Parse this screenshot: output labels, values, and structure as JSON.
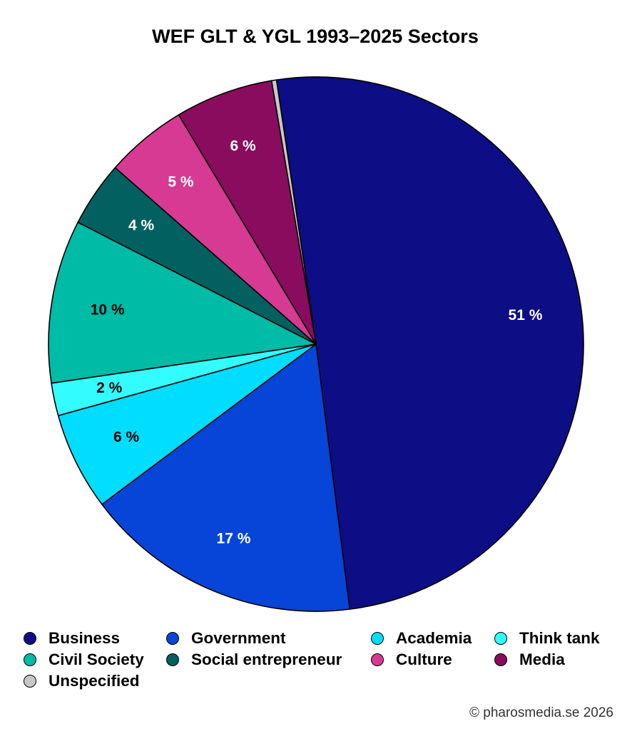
{
  "chart_data": {
    "type": "pie",
    "title": "WEF GLT & YGL 1993–2025 Sectors",
    "slices": [
      {
        "name": "Business",
        "value": 51,
        "label": "51 %",
        "color": "#0d0d85",
        "label_color": "#ffffff"
      },
      {
        "name": "Government",
        "value": 17,
        "label": "17 %",
        "color": "#0645d8",
        "label_color": "#ffffff"
      },
      {
        "name": "Academia",
        "value": 6,
        "label": "6 %",
        "color": "#00ddff",
        "label_color": "#000000"
      },
      {
        "name": "Think tank",
        "value": 2,
        "label": "2 %",
        "color": "#33fcff",
        "label_color": "#000000"
      },
      {
        "name": "Civil Society",
        "value": 10,
        "label": "10 %",
        "color": "#00bba6",
        "label_color": "#000000"
      },
      {
        "name": "Social entrepreneur",
        "value": 4,
        "label": "4 %",
        "color": "#036060",
        "label_color": "#ffffff"
      },
      {
        "name": "Culture",
        "value": 5,
        "label": "5 %",
        "color": "#d63a92",
        "label_color": "#ffffff"
      },
      {
        "name": "Media",
        "value": 6,
        "label": "6 %",
        "color": "#8a0c5e",
        "label_color": "#ffffff"
      },
      {
        "name": "Unspecified",
        "value": 0.3,
        "label": "",
        "color": "#c8c8c8",
        "label_color": "#000000"
      }
    ],
    "start_angle_deg": -8.5,
    "direction": "clockwise",
    "legend_position": "bottom",
    "legend_order": [
      "Business",
      "Government",
      "Academia",
      "Think tank",
      "Civil Society",
      "Social entrepreneur",
      "Culture",
      "Media",
      "Unspecified"
    ]
  },
  "credit": "© pharosmedia.se 2026"
}
